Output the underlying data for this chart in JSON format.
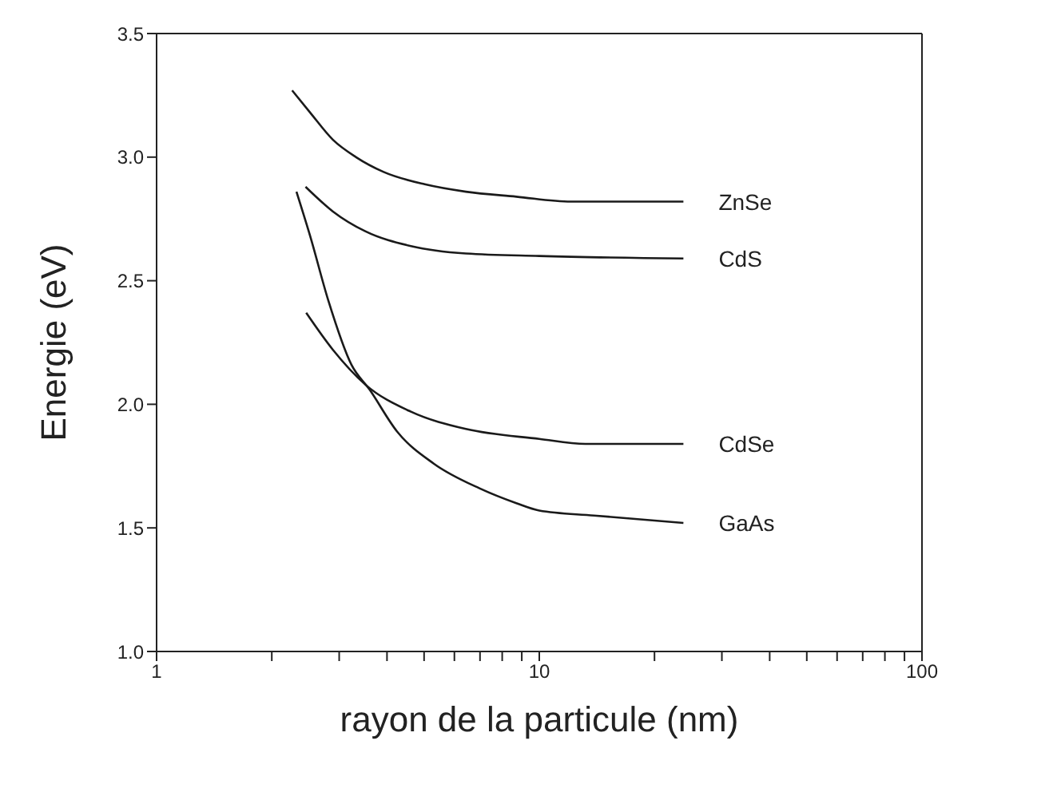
{
  "chart_data": {
    "type": "line",
    "xlabel": "rayon de la particule (nm)",
    "ylabel": "Energie (eV)",
    "log": "x",
    "xlim": [
      1,
      100
    ],
    "ylim": [
      1.0,
      3.5
    ],
    "xticks": [
      1,
      {
        "value": 2,
        "label": null
      },
      {
        "value": 3,
        "label": null
      },
      {
        "value": 4,
        "label": null
      },
      {
        "value": 5,
        "label": null
      },
      {
        "value": 6,
        "label": null
      },
      {
        "value": 7,
        "label": null
      },
      {
        "value": 8,
        "label": null
      },
      {
        "value": 9,
        "label": null
      },
      10,
      {
        "value": 20,
        "label": null
      },
      {
        "value": 30,
        "label": null
      },
      {
        "value": 40,
        "label": null
      },
      {
        "value": 50,
        "label": null
      },
      {
        "value": 60,
        "label": null
      },
      {
        "value": 70,
        "label": null
      },
      {
        "value": 80,
        "label": null
      },
      {
        "value": 90,
        "label": null
      },
      100
    ],
    "yticks": [
      {
        "value": 1,
        "label": "1.0"
      },
      {
        "value": 1.5,
        "label": "1.5"
      },
      {
        "value": 2,
        "label": "2.0"
      },
      {
        "value": 2.5,
        "label": "2.5"
      },
      {
        "value": 3,
        "label": "3.0"
      },
      {
        "value": 3.5,
        "label": "3.5"
      }
    ],
    "marker": "none",
    "line_style": "solid",
    "series": [
      {
        "name": "ZnSe",
        "color": "#1a1a1a",
        "x": [
          2.26,
          2.52,
          2.89,
          3.32,
          3.92,
          5.02,
          6.43,
          8.71,
          12.1,
          23.8
        ],
        "values": [
          3.27,
          3.18,
          3.07,
          3.0,
          2.94,
          2.89,
          2.86,
          2.84,
          2.82,
          2.82
        ]
      },
      {
        "name": "CdS",
        "color": "#1a1a1a",
        "x": [
          2.45,
          2.89,
          3.51,
          4.62,
          6.43,
          10,
          23.8
        ],
        "values": [
          2.88,
          2.78,
          2.7,
          2.64,
          2.61,
          2.6,
          2.59
        ]
      },
      {
        "name": "CdSe",
        "color": "#1a1a1a",
        "x": [
          2.46,
          2.89,
          3.51,
          4.62,
          6.43,
          10,
          13.2,
          23.8
        ],
        "values": [
          2.37,
          2.22,
          2.08,
          1.97,
          1.9,
          1.86,
          1.84,
          1.84
        ]
      },
      {
        "name": "GaAs",
        "color": "#1a1a1a",
        "x": [
          2.32,
          2.52,
          2.81,
          3.23,
          3.6,
          4.25,
          5.3,
          6.98,
          8.71,
          10,
          13.9,
          23.8
        ],
        "values": [
          2.86,
          2.68,
          2.42,
          2.16,
          2.06,
          1.89,
          1.76,
          1.66,
          1.6,
          1.57,
          1.55,
          1.52
        ]
      }
    ]
  }
}
